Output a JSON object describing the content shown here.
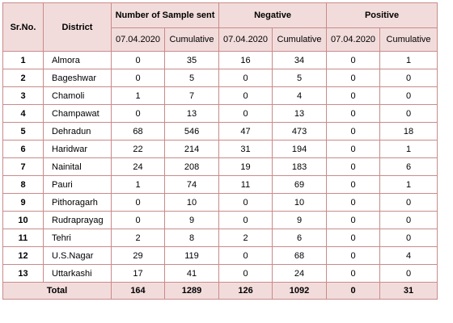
{
  "headers": {
    "sr_no": "Sr.No.",
    "district": "District",
    "samples_sent": "Number of Sample sent",
    "negative": "Negative",
    "positive": "Positive",
    "date": "07.04.2020",
    "cumulative": "Cumulative"
  },
  "rows": [
    {
      "sr": "1",
      "district": "Almora",
      "sent_day": "0",
      "sent_cum": "35",
      "neg_day": "16",
      "neg_cum": "34",
      "pos_day": "0",
      "pos_cum": "1"
    },
    {
      "sr": "2",
      "district": "Bageshwar",
      "sent_day": "0",
      "sent_cum": "5",
      "neg_day": "0",
      "neg_cum": "5",
      "pos_day": "0",
      "pos_cum": "0"
    },
    {
      "sr": "3",
      "district": "Chamoli",
      "sent_day": "1",
      "sent_cum": "7",
      "neg_day": "0",
      "neg_cum": "4",
      "pos_day": "0",
      "pos_cum": "0"
    },
    {
      "sr": "4",
      "district": "Champawat",
      "sent_day": "0",
      "sent_cum": "13",
      "neg_day": "0",
      "neg_cum": "13",
      "pos_day": "0",
      "pos_cum": "0"
    },
    {
      "sr": "5",
      "district": "Dehradun",
      "sent_day": "68",
      "sent_cum": "546",
      "neg_day": "47",
      "neg_cum": "473",
      "pos_day": "0",
      "pos_cum": "18"
    },
    {
      "sr": "6",
      "district": "Haridwar",
      "sent_day": "22",
      "sent_cum": "214",
      "neg_day": "31",
      "neg_cum": "194",
      "pos_day": "0",
      "pos_cum": "1"
    },
    {
      "sr": "7",
      "district": "Nainital",
      "sent_day": "24",
      "sent_cum": "208",
      "neg_day": "19",
      "neg_cum": "183",
      "pos_day": "0",
      "pos_cum": "6"
    },
    {
      "sr": "8",
      "district": "Pauri",
      "sent_day": "1",
      "sent_cum": "74",
      "neg_day": "11",
      "neg_cum": "69",
      "pos_day": "0",
      "pos_cum": "1"
    },
    {
      "sr": "9",
      "district": "Pithoragarh",
      "sent_day": "0",
      "sent_cum": "10",
      "neg_day": "0",
      "neg_cum": "10",
      "pos_day": "0",
      "pos_cum": "0"
    },
    {
      "sr": "10",
      "district": "Rudraprayag",
      "sent_day": "0",
      "sent_cum": "9",
      "neg_day": "0",
      "neg_cum": "9",
      "pos_day": "0",
      "pos_cum": "0"
    },
    {
      "sr": "11",
      "district": "Tehri",
      "sent_day": "2",
      "sent_cum": "8",
      "neg_day": "2",
      "neg_cum": "6",
      "pos_day": "0",
      "pos_cum": "0"
    },
    {
      "sr": "12",
      "district": "U.S.Nagar",
      "sent_day": "29",
      "sent_cum": "119",
      "neg_day": "0",
      "neg_cum": "68",
      "pos_day": "0",
      "pos_cum": "4"
    },
    {
      "sr": "13",
      "district": "Uttarkashi",
      "sent_day": "17",
      "sent_cum": "41",
      "neg_day": "0",
      "neg_cum": "24",
      "pos_day": "0",
      "pos_cum": "0"
    }
  ],
  "total": {
    "label": "Total",
    "sent_day": "164",
    "sent_cum": "1289",
    "neg_day": "126",
    "neg_cum": "1092",
    "pos_day": "0",
    "pos_cum": "31"
  }
}
